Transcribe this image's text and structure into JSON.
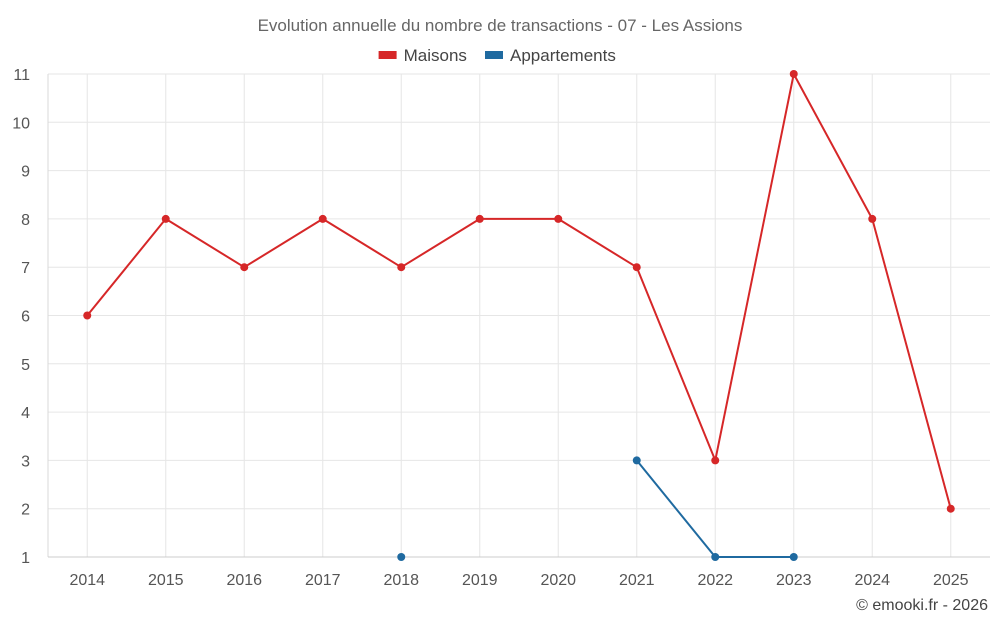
{
  "chart_data": {
    "type": "line",
    "title": "Evolution annuelle du nombre de transactions - 07 - Les Assions",
    "categories": [
      "2014",
      "2015",
      "2016",
      "2017",
      "2018",
      "2019",
      "2020",
      "2021",
      "2022",
      "2023",
      "2024",
      "2025"
    ],
    "ylim": [
      1,
      11
    ],
    "yticks": [
      1,
      2,
      3,
      4,
      5,
      6,
      7,
      8,
      9,
      10,
      11
    ],
    "grid": true,
    "legend_position": "top-center",
    "series": [
      {
        "name": "Maisons",
        "color": "#d62728",
        "values": [
          6,
          8,
          7,
          8,
          7,
          8,
          8,
          7,
          3,
          11,
          8,
          2
        ]
      },
      {
        "name": "Appartements",
        "color": "#1f6aa0",
        "values": [
          null,
          null,
          null,
          null,
          1,
          null,
          null,
          3,
          1,
          1,
          null,
          null
        ]
      }
    ],
    "credit": "© emooki.fr - 2026"
  }
}
